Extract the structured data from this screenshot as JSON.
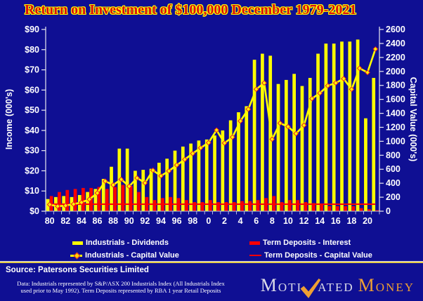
{
  "title": "Return on Investment of $100,000 December 1979-2021",
  "source": "Source: Patersons Securities Limited",
  "footnote": {
    "line1": "Data: Industrials represented by S&P/ASX 200 Industrials Index (All Industrials Index",
    "line2": "used prior to May 1992). Term Deposits represented by RBA 1 year Retail Deposits"
  },
  "logo": {
    "m1": "M",
    "oti": "OTI",
    "ated": "ATED",
    "m2": "M",
    "oney": "ONEY",
    "check_icon": "check-swoosh"
  },
  "colors": {
    "background": "#0f0f93",
    "title_red": "#d90f0f",
    "title_glow": "#ffff00",
    "text_white": "#ffffff",
    "bar_yellow": "#ffff00",
    "bar_red": "#fb0000",
    "marker_stroke": "#e82222",
    "divider_yellow": "#e8cf4a",
    "logo_silver": "#dcdce8",
    "logo_orange": "#ee9f33"
  },
  "chart_data": {
    "type": "bar",
    "subtype": "combo bar+line, dual axis",
    "title": "Return on Investment of $100,000 December 1979-2021",
    "x": [
      1980,
      1981,
      1982,
      1983,
      1984,
      1985,
      1986,
      1987,
      1988,
      1989,
      1990,
      1991,
      1992,
      1993,
      1994,
      1995,
      1996,
      1997,
      1998,
      1999,
      2000,
      2001,
      2002,
      2003,
      2004,
      2005,
      2006,
      2007,
      2008,
      2009,
      2010,
      2011,
      2012,
      2013,
      2014,
      2015,
      2016,
      2017,
      2018,
      2019,
      2020,
      2021
    ],
    "x_tick_labels": [
      "80",
      "82",
      "84",
      "86",
      "88",
      "90",
      "92",
      "94",
      "96",
      "98",
      "0",
      "2",
      "4",
      "6",
      "8",
      "10",
      "12",
      "14",
      "16",
      "18",
      "20"
    ],
    "left_axis": {
      "title": "Income (000's)",
      "range": [
        0,
        90
      ],
      "tick_step": 10,
      "tick_prefix": "$"
    },
    "right_axis": {
      "title": "Capital Value (000's)",
      "range": [
        0,
        2600
      ],
      "tick_step": 200
    },
    "grid": false,
    "legend_position": "bottom",
    "series": [
      {
        "name": "Industrials - Dividends",
        "type": "bar",
        "axis": "left",
        "color": "#ffff00",
        "values": [
          6,
          7,
          7.5,
          7,
          8,
          9.5,
          11,
          16,
          22,
          31,
          31,
          20,
          20.5,
          21,
          24,
          26,
          30,
          32,
          33.5,
          35,
          35.5,
          37.5,
          40,
          45,
          49,
          52,
          75,
          78,
          77,
          63,
          65,
          68,
          62,
          66,
          78,
          83,
          83,
          84,
          84,
          85,
          46,
          66
        ]
      },
      {
        "name": "Term Deposits - Interest",
        "type": "bar",
        "axis": "left",
        "color": "#fb0000",
        "values": [
          7.5,
          9.5,
          10.5,
          11,
          11.5,
          11.5,
          12,
          11,
          12,
          13,
          12.5,
          9.5,
          7,
          5.5,
          6.5,
          7,
          6.5,
          5.5,
          4.5,
          4.5,
          5.5,
          4.5,
          4.5,
          4.5,
          5,
          5,
          5.5,
          6.5,
          7.5,
          4.5,
          5.5,
          5.5,
          4.5,
          4,
          3.5,
          2.5,
          2.5,
          2.5,
          2.5,
          1.5,
          1,
          0.5
        ]
      },
      {
        "name": "Industrials - Capital Value",
        "type": "line",
        "axis": "right",
        "color": "#ffff00",
        "marker": "diamond",
        "values": [
          95,
          70,
          80,
          100,
          125,
          170,
          260,
          430,
          375,
          455,
          355,
          475,
          405,
          585,
          505,
          575,
          660,
          740,
          825,
          905,
          980,
          1160,
          975,
          1060,
          1290,
          1460,
          1745,
          1835,
          1030,
          1260,
          1210,
          1110,
          1230,
          1610,
          1690,
          1795,
          1835,
          1895,
          1745,
          2045,
          1985,
          2320
        ]
      },
      {
        "name": "Term Deposits - Capital Value",
        "type": "line",
        "axis": "right",
        "color": "#fb0000",
        "marker": "none",
        "values": [
          100,
          100,
          100,
          100,
          100,
          100,
          100,
          100,
          100,
          100,
          100,
          100,
          100,
          100,
          100,
          100,
          100,
          100,
          100,
          100,
          100,
          100,
          100,
          100,
          100,
          100,
          100,
          100,
          100,
          100,
          100,
          100,
          100,
          100,
          100,
          100,
          100,
          100,
          100,
          100,
          100,
          100
        ]
      }
    ]
  }
}
